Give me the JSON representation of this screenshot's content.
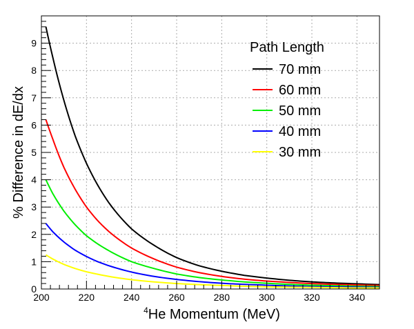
{
  "chart_data": {
    "type": "line",
    "title": "",
    "xlabel_sup": "4",
    "xlabel_main": "He Momentum  (MeV)",
    "ylabel": "% Difference in dE/dx",
    "xlim": [
      200,
      350
    ],
    "ylim": [
      0,
      10
    ],
    "x_ticks": [
      200,
      220,
      240,
      260,
      280,
      300,
      320,
      340
    ],
    "y_ticks": [
      0,
      1,
      2,
      3,
      4,
      5,
      6,
      7,
      8,
      9
    ],
    "grid": true,
    "legend": {
      "title": "Path Length",
      "position": "top-right"
    },
    "x": [
      202,
      205,
      210,
      215,
      220,
      225,
      230,
      240,
      250,
      260,
      270,
      280,
      290,
      300,
      310,
      320,
      330,
      340,
      350
    ],
    "series": [
      {
        "name": "70 mm",
        "color": "#000000",
        "values": [
          9.6,
          8.5,
          6.9,
          5.6,
          4.6,
          3.8,
          3.15,
          2.2,
          1.6,
          1.15,
          0.85,
          0.65,
          0.5,
          0.4,
          0.32,
          0.26,
          0.22,
          0.19,
          0.16
        ]
      },
      {
        "name": "60 mm",
        "color": "#ff0000",
        "values": [
          6.2,
          5.5,
          4.45,
          3.65,
          3.0,
          2.5,
          2.1,
          1.5,
          1.1,
          0.8,
          0.6,
          0.46,
          0.36,
          0.29,
          0.24,
          0.2,
          0.17,
          0.15,
          0.13
        ]
      },
      {
        "name": "50 mm",
        "color": "#00ee00",
        "values": [
          4.0,
          3.5,
          2.85,
          2.35,
          1.95,
          1.65,
          1.4,
          1.0,
          0.75,
          0.55,
          0.42,
          0.33,
          0.26,
          0.21,
          0.17,
          0.14,
          0.12,
          0.1,
          0.09
        ]
      },
      {
        "name": "40 mm",
        "color": "#0000ff",
        "values": [
          2.4,
          2.1,
          1.72,
          1.42,
          1.19,
          1.0,
          0.85,
          0.62,
          0.46,
          0.35,
          0.27,
          0.21,
          0.17,
          0.14,
          0.11,
          0.09,
          0.08,
          0.07,
          0.06
        ]
      },
      {
        "name": "30 mm",
        "color": "#ffff00",
        "values": [
          1.25,
          1.1,
          0.9,
          0.75,
          0.63,
          0.54,
          0.46,
          0.34,
          0.26,
          0.2,
          0.16,
          0.13,
          0.1,
          0.08,
          0.07,
          0.06,
          0.05,
          0.04,
          0.04
        ]
      }
    ]
  }
}
